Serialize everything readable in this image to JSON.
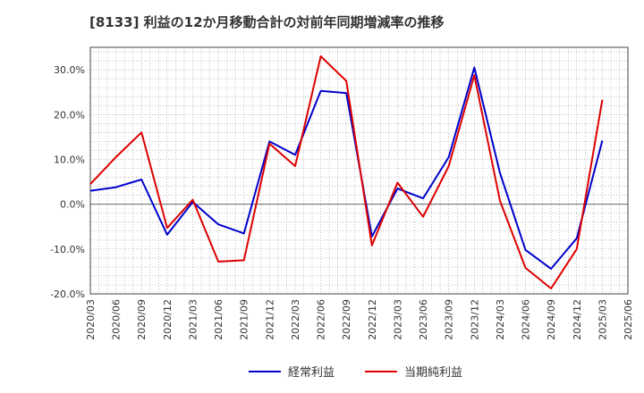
{
  "chart_data": {
    "type": "line",
    "title": "[8133]  利益の12か月移動合計の対前年同期増減率の推移",
    "xlabel": "",
    "ylabel": "",
    "ylim": [
      -20,
      35
    ],
    "yticks": [
      30,
      20,
      10,
      0,
      -10,
      -20
    ],
    "ytick_labels": [
      "30.0%",
      "20.0%",
      "10.0%",
      "0.0%",
      "-10.0%",
      "-20.0%"
    ],
    "x": [
      "2020/03",
      "2020/06",
      "2020/09",
      "2020/12",
      "2021/03",
      "2021/06",
      "2021/09",
      "2021/12",
      "2022/03",
      "2022/06",
      "2022/09",
      "2022/12",
      "2023/03",
      "2023/06",
      "2023/09",
      "2023/12",
      "2024/03",
      "2024/06",
      "2024/09",
      "2024/12",
      "2025/03",
      "2025/06"
    ],
    "grid": true,
    "legend_position": "bottom",
    "series": [
      {
        "name": "経常利益",
        "color": "#0000cc",
        "values": [
          3.0,
          3.8,
          5.5,
          -6.8,
          0.5,
          -4.5,
          -6.5,
          14.0,
          11.0,
          25.3,
          24.8,
          -7.2,
          3.5,
          1.3,
          10.5,
          30.5,
          7.0,
          -10.2,
          -14.4,
          -7.6,
          14.2,
          null
        ]
      },
      {
        "name": "当期純利益",
        "color": "#dd0000",
        "values": [
          4.5,
          10.5,
          16.0,
          -5.3,
          1.0,
          -12.8,
          -12.5,
          13.5,
          8.5,
          33.0,
          27.5,
          -9.2,
          4.8,
          -2.8,
          8.5,
          28.8,
          0.8,
          -14.2,
          -18.8,
          -10.0,
          23.3,
          null
        ]
      }
    ]
  }
}
